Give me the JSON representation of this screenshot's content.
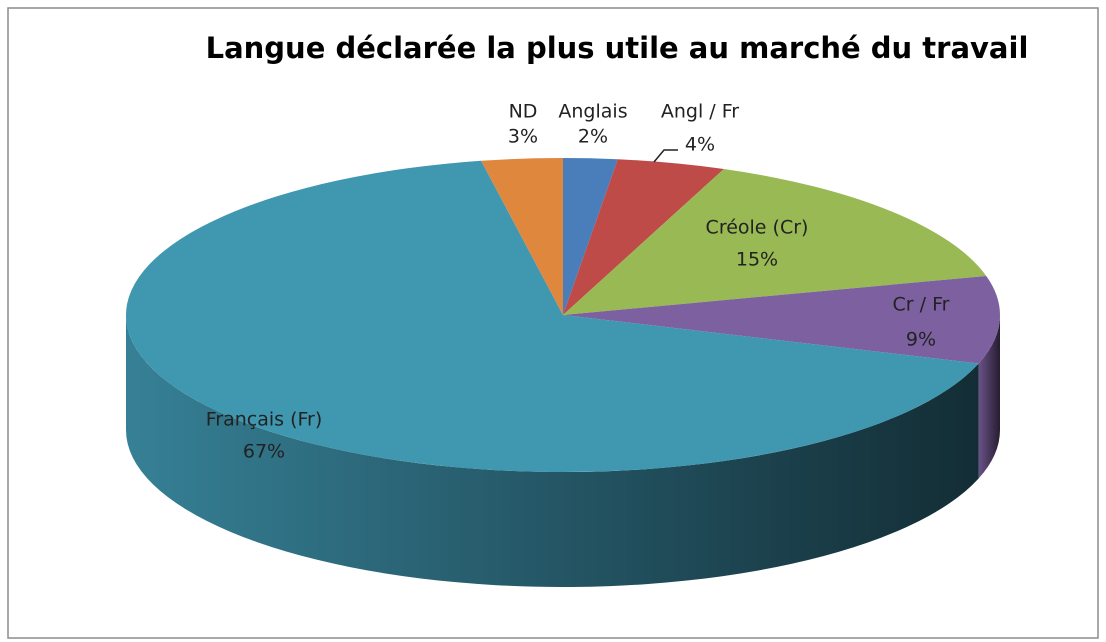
{
  "chart_data": {
    "type": "pie",
    "title": "Langue déclarée la plus utile au marché du travail",
    "categories": [
      "Anglais",
      "Angl / Fr",
      "Créole (Cr)",
      "Cr / Fr",
      "Français (Fr)",
      "ND"
    ],
    "values": [
      2,
      4,
      15,
      9,
      67,
      3
    ],
    "value_labels": [
      "2%",
      "4%",
      "15%",
      "9%",
      "67%",
      "3%"
    ],
    "colors": [
      "#4a7ebb",
      "#be4b48",
      "#98b954",
      "#7d60a0",
      "#3f97b0",
      "#e0873e"
    ]
  }
}
